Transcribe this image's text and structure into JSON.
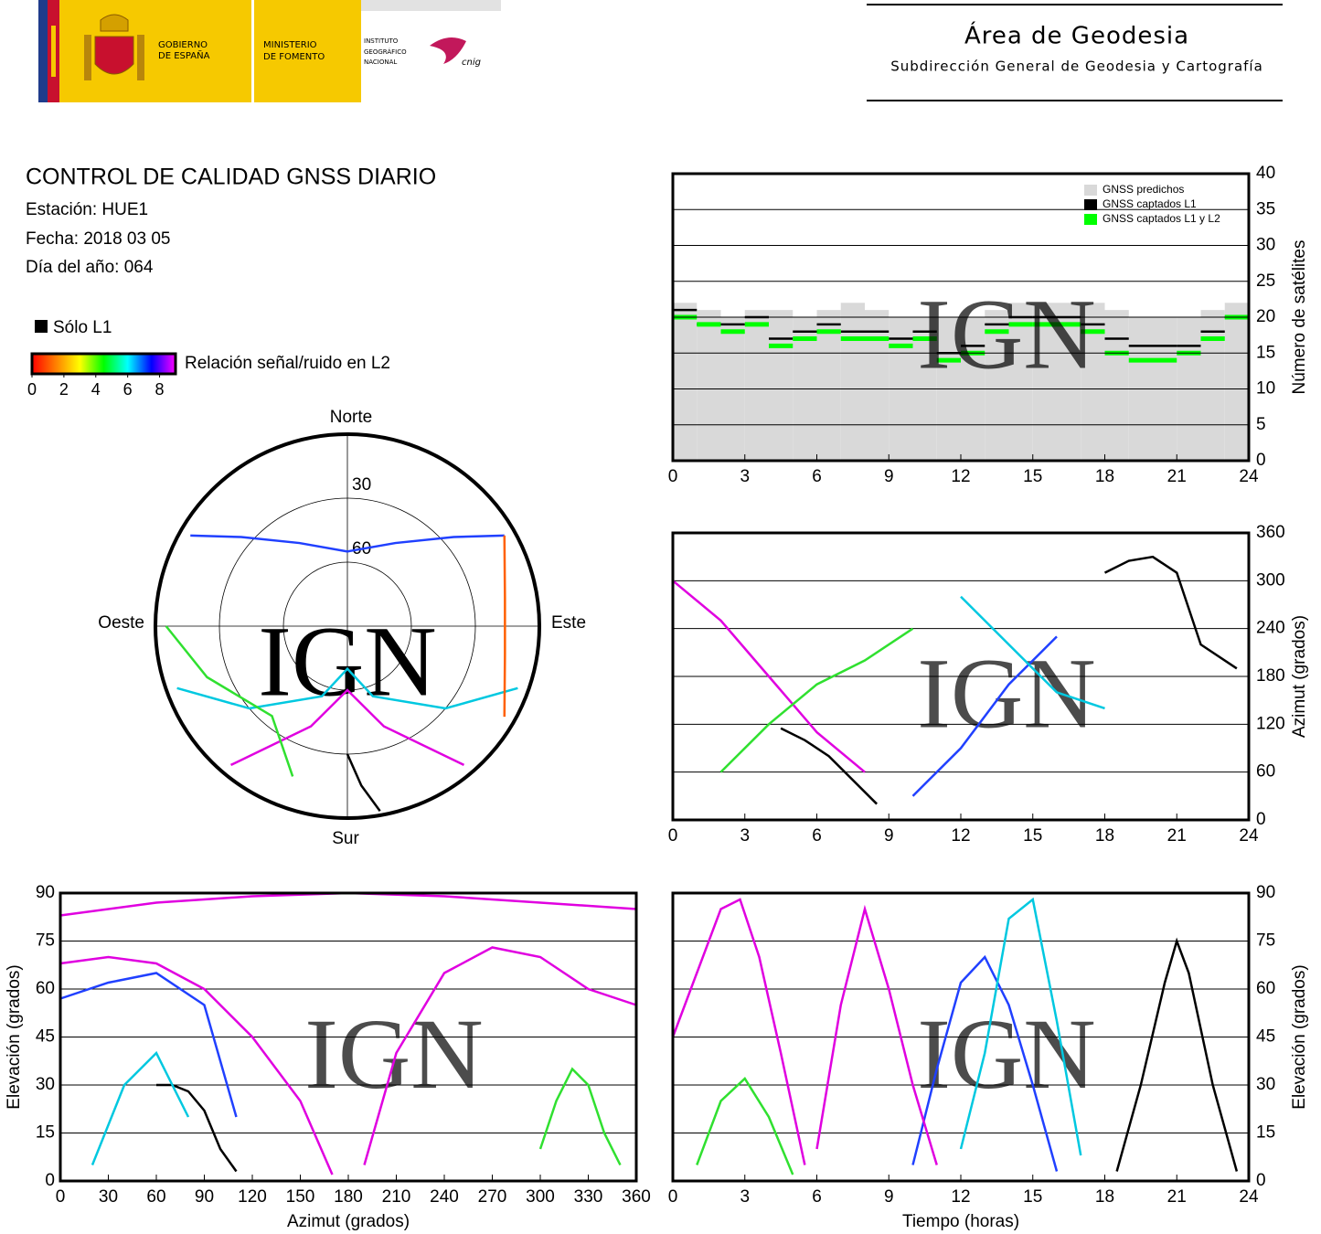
{
  "header": {
    "gov": [
      "GOBIERNO",
      "DE ESPAÑA"
    ],
    "ministry": [
      "MINISTERIO",
      "DE FOMENTO"
    ],
    "institute": [
      "INSTITUTO",
      "GEOGRÁFICO",
      "NACIONAL"
    ],
    "cnig": "cnig",
    "area": "Área de Geodesia",
    "subdirection": "Subdirección General de Geodesia y Cartografía"
  },
  "report": {
    "title": "CONTROL DE CALIDAD GNSS DIARIO",
    "station": "Estación: HUE1",
    "date": "Fecha: 2018 03 05",
    "doy": "Día del año: 064"
  },
  "legend": {
    "l1_only": "Sólo L1",
    "l1_color": "#000000",
    "snr_label": "Relación señal/ruido en L2",
    "colorbar": {
      "lim": [
        0,
        9
      ],
      "ticks": [
        0,
        2,
        4,
        6,
        8
      ],
      "colors": [
        "#ff0000",
        "#ff8000",
        "#ffff00",
        "#00ff00",
        "#00ffff",
        "#0000ff",
        "#ff00ff"
      ]
    }
  },
  "chart_data": [
    {
      "type": "polar",
      "watermark": "IGN",
      "directions": {
        "north": "Norte",
        "east": "Este",
        "south": "Sur",
        "west": "Oeste"
      },
      "rlim": [
        90,
        0
      ],
      "rticks": [
        30,
        60
      ],
      "series": [
        {
          "color": "#e000e0",
          "azimuth": [
            220,
            200,
            180,
            160,
            140
          ],
          "values": [
            5,
            40,
            60,
            40,
            5
          ]
        },
        {
          "color": "#2040ff",
          "azimuth": [
            300,
            310,
            330,
            0,
            30,
            50,
            60
          ],
          "values": [
            5,
            25,
            45,
            55,
            45,
            25,
            5
          ]
        },
        {
          "color": "#00c8e0",
          "azimuth": [
            250,
            230,
            200,
            180,
            160,
            130,
            110
          ],
          "values": [
            5,
            30,
            55,
            70,
            55,
            30,
            5
          ]
        },
        {
          "color": "#30e030",
          "azimuth": [
            270,
            250,
            220,
            200
          ],
          "values": [
            5,
            20,
            35,
            15
          ]
        },
        {
          "color": "#000000",
          "azimuth": [
            170,
            175,
            180
          ],
          "values": [
            2,
            15,
            30
          ]
        },
        {
          "color": "#ff6000",
          "azimuth": [
            60,
            80,
            100,
            120
          ],
          "values": [
            5,
            15,
            15,
            5
          ]
        }
      ]
    },
    {
      "type": "step",
      "watermark": "IGN",
      "ylabel": "Número de satélites",
      "y_axis_side": "right",
      "grid": true,
      "legend": "upper right",
      "xlim": [
        0,
        24
      ],
      "xticks": [
        0,
        3,
        6,
        9,
        12,
        15,
        18,
        21,
        24
      ],
      "ylim": [
        0,
        40
      ],
      "yticks": [
        0,
        5,
        10,
        15,
        20,
        25,
        30,
        35,
        40
      ],
      "x": [
        0,
        1,
        2,
        3,
        4,
        5,
        6,
        7,
        8,
        9,
        10,
        11,
        12,
        13,
        14,
        15,
        16,
        17,
        18,
        19,
        20,
        21,
        22,
        23
      ],
      "series": [
        {
          "name": "GNSS predichos",
          "color": "#d9d9d9",
          "fill": true,
          "values": [
            22,
            21,
            20,
            21,
            21,
            20,
            21,
            22,
            21,
            20,
            20,
            20,
            20,
            21,
            22,
            22,
            22,
            22,
            21,
            20,
            20,
            20,
            21,
            22
          ]
        },
        {
          "name": "GNSS captados L1",
          "color": "#000000",
          "values": [
            21,
            19,
            19,
            20,
            17,
            18,
            19,
            18,
            18,
            17,
            18,
            15,
            16,
            19,
            20,
            20,
            20,
            19,
            17,
            16,
            16,
            16,
            18,
            20
          ]
        },
        {
          "name": "GNSS captados L1 y L2",
          "color": "#00ff00",
          "values": [
            20,
            19,
            18,
            19,
            16,
            17,
            18,
            17,
            17,
            16,
            17,
            14,
            15,
            18,
            19,
            19,
            19,
            18,
            15,
            14,
            14,
            15,
            17,
            20
          ]
        }
      ]
    },
    {
      "type": "line",
      "watermark": "IGN",
      "ylabel": "Azimut (grados)",
      "y_axis_side": "right",
      "grid": true,
      "xlim": [
        0,
        24
      ],
      "xticks": [
        0,
        3,
        6,
        9,
        12,
        15,
        18,
        21,
        24
      ],
      "ylim": [
        0,
        360
      ],
      "yticks": [
        0,
        60,
        120,
        180,
        240,
        300,
        360
      ],
      "series": [
        {
          "color": "#e000e0",
          "x": [
            0,
            2,
            4,
            6,
            8
          ],
          "values": [
            300,
            250,
            180,
            110,
            60
          ]
        },
        {
          "color": "#2040ff",
          "x": [
            10,
            12,
            14,
            16
          ],
          "values": [
            30,
            90,
            170,
            230
          ]
        },
        {
          "color": "#000000",
          "x": [
            18,
            19,
            20,
            21,
            22,
            23.5
          ],
          "values": [
            310,
            325,
            330,
            310,
            220,
            190
          ]
        },
        {
          "color": "#30e030",
          "x": [
            2,
            4,
            6,
            8,
            10
          ],
          "values": [
            60,
            120,
            170,
            200,
            240
          ]
        },
        {
          "color": "#00c8e0",
          "x": [
            12,
            14,
            16,
            18
          ],
          "values": [
            280,
            220,
            160,
            140
          ]
        },
        {
          "color": "#000000",
          "x": [
            4.5,
            5.5,
            6.5,
            7.5,
            8.5
          ],
          "values": [
            115,
            100,
            80,
            50,
            20
          ]
        }
      ]
    },
    {
      "type": "line",
      "watermark": "IGN",
      "xlabel": "Azimut (grados)",
      "ylabel": "Elevación (grados)",
      "y_axis_side": "left",
      "grid": true,
      "xlim": [
        0,
        360
      ],
      "xticks": [
        0,
        30,
        60,
        90,
        120,
        150,
        180,
        210,
        240,
        270,
        300,
        330,
        360
      ],
      "ylim": [
        0,
        90
      ],
      "yticks": [
        0,
        15,
        30,
        45,
        60,
        75,
        90
      ],
      "series": [
        {
          "color": "#e000e0",
          "x": [
            0,
            30,
            60,
            90,
            120,
            150,
            170
          ],
          "values": [
            68,
            70,
            68,
            60,
            45,
            25,
            2
          ]
        },
        {
          "color": "#e000e0",
          "x": [
            190,
            210,
            240,
            270,
            300,
            330,
            360
          ],
          "values": [
            5,
            40,
            65,
            73,
            70,
            60,
            55
          ]
        },
        {
          "color": "#2040ff",
          "x": [
            0,
            30,
            60,
            90,
            110
          ],
          "values": [
            57,
            62,
            65,
            55,
            20
          ]
        },
        {
          "color": "#000000",
          "x": [
            60,
            70,
            80,
            90,
            100,
            110
          ],
          "values": [
            30,
            30,
            28,
            22,
            10,
            3
          ]
        },
        {
          "color": "#00c8e0",
          "x": [
            20,
            40,
            60,
            80
          ],
          "values": [
            5,
            30,
            40,
            20
          ]
        },
        {
          "color": "#30e030",
          "x": [
            300,
            310,
            320,
            330,
            340,
            350
          ],
          "values": [
            10,
            25,
            35,
            30,
            15,
            5
          ]
        },
        {
          "color": "#e000e0",
          "x": [
            0,
            60,
            120,
            180,
            240,
            300,
            360
          ],
          "values": [
            83,
            87,
            89,
            90,
            89,
            87,
            85
          ]
        }
      ]
    },
    {
      "type": "line",
      "watermark": "IGN",
      "xlabel": "Tiempo (horas)",
      "ylabel": "Elevación (grados)",
      "y_axis_side": "right",
      "grid": true,
      "xlim": [
        0,
        24
      ],
      "xticks": [
        0,
        3,
        6,
        9,
        12,
        15,
        18,
        21,
        24
      ],
      "ylim": [
        0,
        90
      ],
      "yticks": [
        0,
        15,
        30,
        45,
        60,
        75,
        90
      ],
      "series": [
        {
          "color": "#e000e0",
          "x": [
            0,
            1,
            2,
            2.8,
            3.6,
            4.5,
            5.5
          ],
          "values": [
            45,
            65,
            85,
            88,
            70,
            40,
            5
          ]
        },
        {
          "color": "#2040ff",
          "x": [
            10,
            11,
            12,
            13,
            14,
            15,
            16
          ],
          "values": [
            5,
            35,
            62,
            70,
            55,
            30,
            3
          ]
        },
        {
          "color": "#00c8e0",
          "x": [
            12,
            13,
            14,
            15,
            16,
            17
          ],
          "values": [
            10,
            40,
            82,
            88,
            50,
            8
          ]
        },
        {
          "color": "#30e030",
          "x": [
            1,
            2,
            3,
            4,
            5
          ],
          "values": [
            5,
            25,
            32,
            20,
            2
          ]
        },
        {
          "color": "#000000",
          "x": [
            18.5,
            19.5,
            20.5,
            21,
            21.5,
            22.5,
            23.5
          ],
          "values": [
            3,
            30,
            62,
            75,
            65,
            30,
            3
          ]
        },
        {
          "color": "#e000e0",
          "x": [
            6,
            7,
            8,
            9,
            10,
            11
          ],
          "values": [
            10,
            55,
            85,
            60,
            30,
            5
          ]
        }
      ]
    }
  ]
}
